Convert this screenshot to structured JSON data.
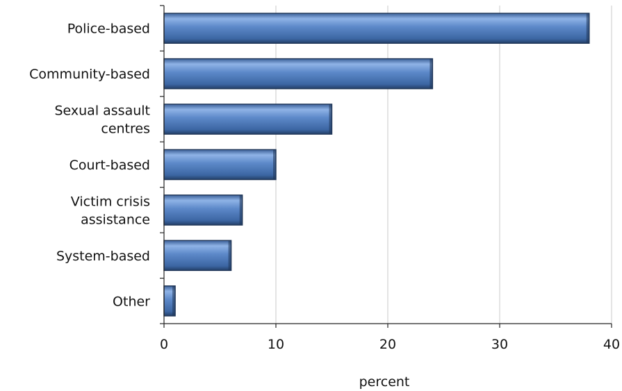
{
  "chart_data": {
    "type": "bar",
    "orientation": "horizontal",
    "categories": [
      [
        "Police-based"
      ],
      [
        "Community-based"
      ],
      [
        "Sexual assault",
        "centres"
      ],
      [
        "Court-based"
      ],
      [
        "Victim crisis",
        "assistance"
      ],
      [
        "System-based"
      ],
      [
        "Other"
      ]
    ],
    "values": [
      38,
      24,
      15,
      10,
      7,
      6,
      1
    ],
    "xlabel": "percent",
    "ylabel": "",
    "xlim": [
      0,
      40
    ],
    "x_ticks": [
      0,
      10,
      20,
      30,
      40
    ],
    "grid": "vertical",
    "bar_color": "#4a75b5",
    "bar_edge_color": "#1f3556"
  }
}
